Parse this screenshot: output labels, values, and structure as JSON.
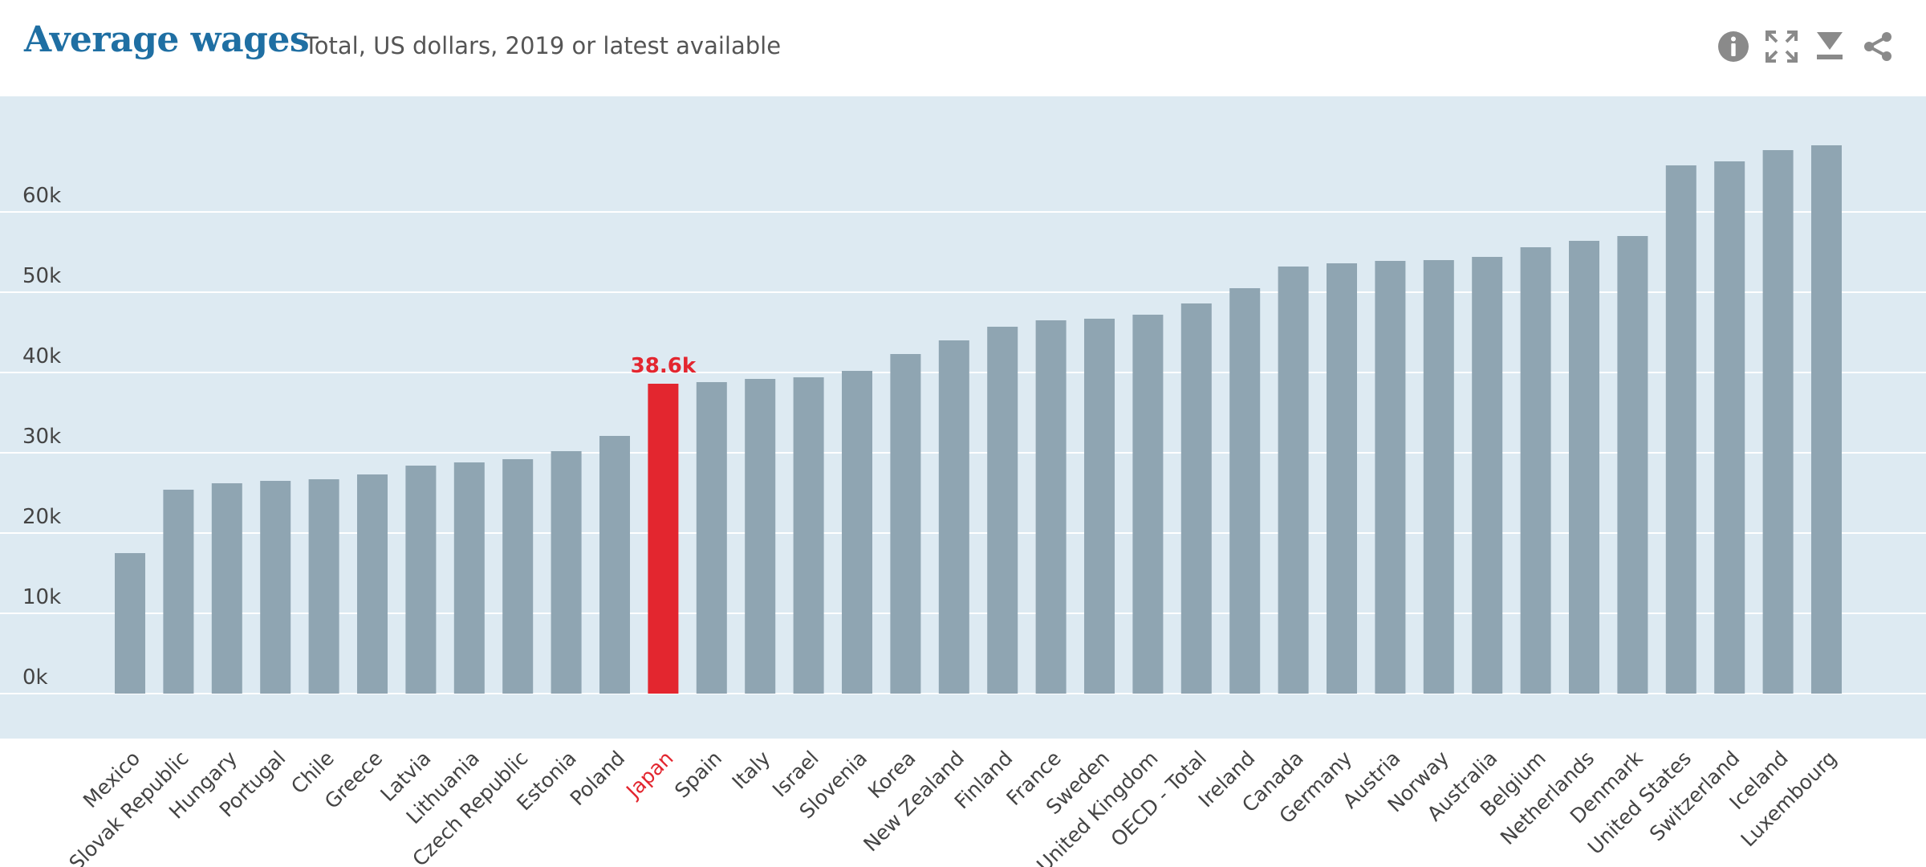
{
  "header": {
    "title": "Average wages",
    "subtitle": "Total, US dollars, 2019 or latest available"
  },
  "toolbar": {
    "icons": [
      "info-icon",
      "fullscreen-icon",
      "download-icon",
      "share-icon"
    ]
  },
  "colors": {
    "bar": "#8fa5b2",
    "highlight": "#e3262f",
    "plot_bg": "#ddeaf2",
    "title": "#1f6fa3",
    "gridline": "#ffffff",
    "tick_text": "#444444"
  },
  "chart_data": {
    "type": "bar",
    "title": "Average wages",
    "subtitle": "Total, US dollars, 2019 or latest available",
    "xlabel": "",
    "ylabel": "",
    "ylim": [
      -5000,
      75000
    ],
    "yticks": [
      0,
      10000,
      20000,
      30000,
      40000,
      50000,
      60000
    ],
    "ytick_labels": [
      "0k",
      "10k",
      "20k",
      "30k",
      "40k",
      "50k",
      "60k"
    ],
    "grid": true,
    "highlight": {
      "category": "Japan",
      "label": "38.6k"
    },
    "categories": [
      "Mexico",
      "Slovak Republic",
      "Hungary",
      "Portugal",
      "Chile",
      "Greece",
      "Latvia",
      "Lithuania",
      "Czech Republic",
      "Estonia",
      "Poland",
      "Japan",
      "Spain",
      "Italy",
      "Israel",
      "Slovenia",
      "Korea",
      "New Zealand",
      "Finland",
      "France",
      "Sweden",
      "United Kingdom",
      "OECD - Total",
      "Ireland",
      "Canada",
      "Germany",
      "Austria",
      "Norway",
      "Australia",
      "Belgium",
      "Netherlands",
      "Denmark",
      "United States",
      "Switzerland",
      "Iceland",
      "Luxembourg"
    ],
    "values": [
      17500,
      25400,
      26200,
      26500,
      26700,
      27300,
      28400,
      28800,
      29200,
      30200,
      32100,
      38600,
      38800,
      39200,
      39400,
      40200,
      42300,
      44000,
      45700,
      46500,
      46700,
      47200,
      48600,
      50500,
      53200,
      53600,
      53900,
      54000,
      54400,
      55600,
      56400,
      57000,
      65800,
      66300,
      67700,
      68300
    ]
  }
}
